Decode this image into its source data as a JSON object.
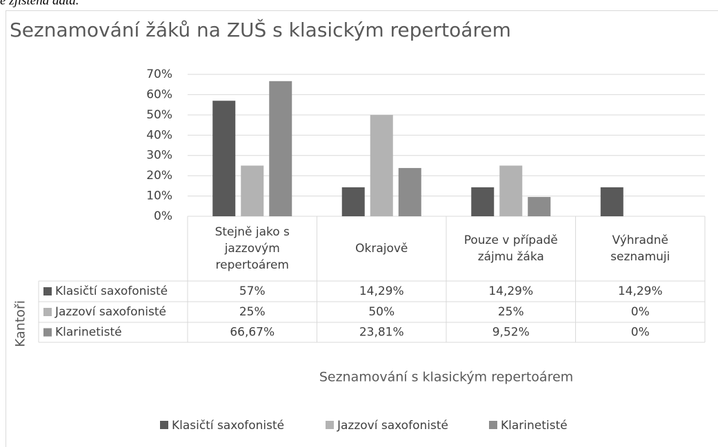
{
  "context_text": "e zjištěná data.",
  "chart_data": {
    "type": "bar",
    "title": "Seznamování žáků na ZUŠ s klasickým repertoárem",
    "categories": [
      "Stejně jako s jazzovým repertoárem",
      "Okrajově",
      "Pouze v případě zájmu žáka",
      "Výhradně seznamuji"
    ],
    "series": [
      {
        "name": "Klasičtí saxofonisté",
        "color": "#595959",
        "values": [
          57,
          14.29,
          14.29,
          14.29
        ],
        "value_labels": [
          "57%",
          "14,29%",
          "14,29%",
          "14,29%"
        ]
      },
      {
        "name": "Jazzoví saxofonisté",
        "color": "#b3b3b3",
        "values": [
          25,
          50,
          25,
          0
        ],
        "value_labels": [
          "25%",
          "50%",
          "25%",
          "0%"
        ]
      },
      {
        "name": "Klarinetisté",
        "color": "#8c8c8c",
        "values": [
          66.67,
          23.81,
          9.52,
          0
        ],
        "value_labels": [
          "66,67%",
          "23,81%",
          "9,52%",
          "0%"
        ]
      }
    ],
    "ylim": [
      0,
      70
    ],
    "yticks": [
      {
        "value": 0,
        "label": "0%"
      },
      {
        "value": 10,
        "label": "10%"
      },
      {
        "value": 20,
        "label": "20%"
      },
      {
        "value": 30,
        "label": "30%"
      },
      {
        "value": 40,
        "label": "40%"
      },
      {
        "value": 50,
        "label": "50%"
      },
      {
        "value": 60,
        "label": "60%"
      },
      {
        "value": 70,
        "label": "70%"
      }
    ],
    "grid": true,
    "xlabel": "Seznamování s klasickým repertoárem",
    "table_title": "Kantoři",
    "legend": "bottom"
  }
}
